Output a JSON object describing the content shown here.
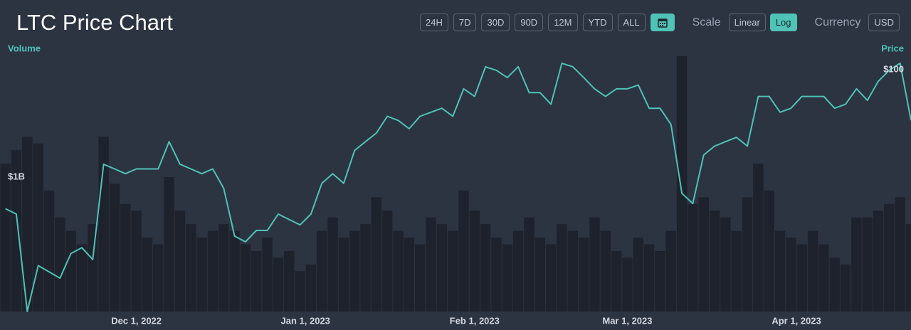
{
  "header": {
    "title": "LTC Price Chart"
  },
  "controls": {
    "ranges": [
      "24H",
      "7D",
      "30D",
      "90D",
      "12M",
      "YTD",
      "ALL"
    ],
    "scale_label": "Scale",
    "scales": [
      "Linear",
      "Log"
    ],
    "active_scale": "Log",
    "currency_label": "Currency",
    "currency": "USD"
  },
  "chart_data": {
    "type": "line",
    "ylabel": "Volume",
    "y2label": "Price",
    "x": [
      "2022-11-06",
      "2022-11-08",
      "2022-11-10",
      "2022-11-12",
      "2022-11-14",
      "2022-11-16",
      "2022-11-18",
      "2022-11-20",
      "2022-11-22",
      "2022-11-24",
      "2022-11-26",
      "2022-11-28",
      "2022-11-30",
      "2022-12-02",
      "2022-12-04",
      "2022-12-06",
      "2022-12-08",
      "2022-12-10",
      "2022-12-12",
      "2022-12-14",
      "2022-12-16",
      "2022-12-18",
      "2022-12-20",
      "2022-12-22",
      "2022-12-24",
      "2022-12-26",
      "2022-12-28",
      "2022-12-30",
      "2023-01-01",
      "2023-01-03",
      "2023-01-05",
      "2023-01-07",
      "2023-01-09",
      "2023-01-11",
      "2023-01-13",
      "2023-01-15",
      "2023-01-17",
      "2023-01-19",
      "2023-01-21",
      "2023-01-23",
      "2023-01-25",
      "2023-01-27",
      "2023-01-29",
      "2023-01-31",
      "2023-02-02",
      "2023-02-04",
      "2023-02-06",
      "2023-02-08",
      "2023-02-10",
      "2023-02-12",
      "2023-02-14",
      "2023-02-16",
      "2023-02-18",
      "2023-02-20",
      "2023-02-22",
      "2023-02-24",
      "2023-02-26",
      "2023-02-28",
      "2023-03-02",
      "2023-03-04",
      "2023-03-06",
      "2023-03-08",
      "2023-03-10",
      "2023-03-12",
      "2023-03-14",
      "2023-03-16",
      "2023-03-18",
      "2023-03-20",
      "2023-03-22",
      "2023-03-24",
      "2023-03-26",
      "2023-03-28",
      "2023-03-30",
      "2023-04-01",
      "2023-04-03",
      "2023-04-05",
      "2023-04-07",
      "2023-04-09",
      "2023-04-11",
      "2023-04-13",
      "2023-04-15",
      "2023-04-17",
      "2023-04-19",
      "2023-04-21"
    ],
    "series": [
      {
        "name": "Volume",
        "type": "bar",
        "axis": "y",
        "color": "#1e222c",
        "values": [
          1100000000.0,
          1200000000.0,
          1300000000.0,
          1250000000.0,
          900000000.0,
          700000000.0,
          600000000.0,
          500000000.0,
          650000000.0,
          1300000000.0,
          950000000.0,
          800000000.0,
          750000000.0,
          550000000.0,
          500000000.0,
          1000000000.0,
          750000000.0,
          650000000.0,
          550000000.0,
          600000000.0,
          650000000.0,
          600000000.0,
          500000000.0,
          450000000.0,
          550000000.0,
          400000000.0,
          450000000.0,
          300000000.0,
          350000000.0,
          600000000.0,
          700000000.0,
          550000000.0,
          600000000.0,
          650000000.0,
          850000000.0,
          750000000.0,
          600000000.0,
          550000000.0,
          500000000.0,
          700000000.0,
          650000000.0,
          600000000.0,
          900000000.0,
          750000000.0,
          650000000.0,
          550000000.0,
          500000000.0,
          600000000.0,
          700000000.0,
          550000000.0,
          500000000.0,
          650000000.0,
          600000000.0,
          550000000.0,
          700000000.0,
          600000000.0,
          450000000.0,
          400000000.0,
          550000000.0,
          500000000.0,
          450000000.0,
          600000000.0,
          1900000000.0,
          800000000.0,
          850000000.0,
          750000000.0,
          700000000.0,
          600000000.0,
          850000000.0,
          1100000000.0,
          900000000.0,
          600000000.0,
          550000000.0,
          500000000.0,
          600000000.0,
          500000000.0,
          400000000.0,
          350000000.0,
          700000000.0,
          700000000.0,
          750000000.0,
          800000000.0,
          850000000.0,
          650000000.0
        ]
      },
      {
        "name": "Price",
        "type": "line",
        "axis": "y2",
        "color": "#4fc3b6",
        "values": [
          69,
          68,
          52,
          59,
          58,
          57,
          61,
          62,
          60,
          78,
          77,
          76,
          77,
          77,
          77,
          83,
          78,
          77,
          76,
          77,
          73,
          64,
          63,
          65,
          65,
          68,
          67,
          66,
          68,
          74,
          76,
          74,
          81,
          83,
          85,
          89,
          88,
          86,
          89,
          90,
          91,
          89,
          96,
          94,
          102,
          101,
          99,
          102,
          95,
          95,
          92,
          103,
          102,
          99,
          96,
          94,
          96,
          96,
          97,
          91,
          91,
          87,
          72,
          70,
          80,
          82,
          83,
          84,
          82,
          94,
          94,
          90,
          91,
          94,
          94,
          94,
          91,
          92,
          96,
          93,
          98,
          101,
          103,
          88
        ]
      }
    ],
    "xlim": [
      "2022-11-06",
      "2023-04-22"
    ],
    "xticks": [
      {
        "value": "2022-12-01",
        "label": "Dec 1, 2022"
      },
      {
        "value": "2023-01-01",
        "label": "Jan 1, 2023"
      },
      {
        "value": "2023-02-01",
        "label": "Feb 1, 2023"
      },
      {
        "value": "2023-03-01",
        "label": "Mar 1, 2023"
      },
      {
        "value": "2023-04-01",
        "label": "Apr 1, 2023"
      }
    ],
    "ylim": [
      0,
      2000000000.0
    ],
    "yticks": [
      {
        "value": 1000000000.0,
        "label": "$1B"
      }
    ],
    "y2lim": [
      52,
      109
    ],
    "y2ticks": [
      {
        "value": 100,
        "label": "$100"
      }
    ],
    "y2scale": "log",
    "grid": false
  }
}
